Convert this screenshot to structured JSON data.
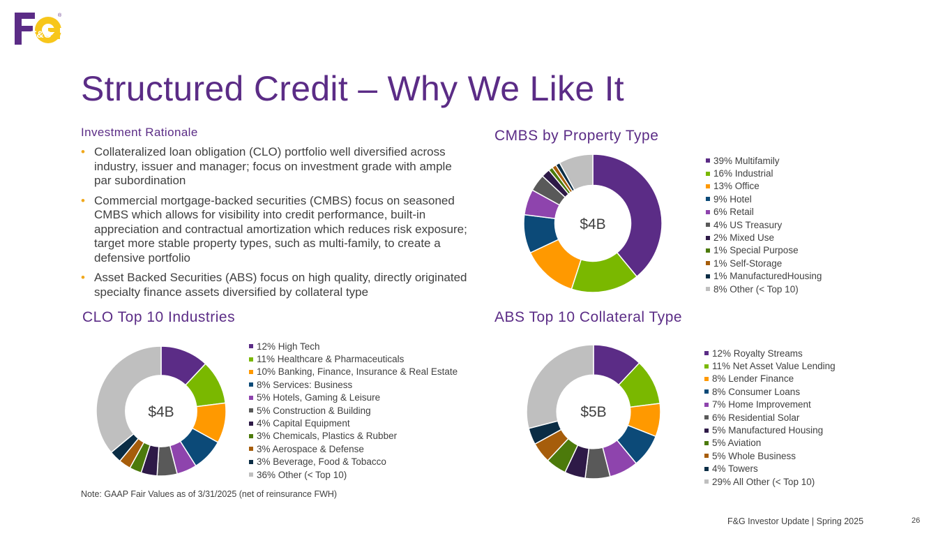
{
  "logo": {
    "text": "F&G",
    "registered": "®",
    "colors": {
      "purple": "#5b2c86",
      "gold": "#f7c61b"
    }
  },
  "title": "Structured Credit – Why We Like It",
  "rationale": {
    "heading": "Investment Rationale",
    "bullet_glyph": "•",
    "bullets": [
      "Collateralized loan obligation (CLO) portfolio well diversified across industry, issuer and manager; focus on investment grade with ample par subordination",
      "Commercial mortgage-backed securities (CMBS) focus on seasoned CMBS which allows for visibility into credit performance, built-in appreciation and contractual amortization which reduces risk exposure; target more stable property types, such as multi-family, to create a defensive portfolio",
      "Asset Backed Securities (ABS) focus on high quality, directly originated specialty finance assets diversified by collateral type"
    ]
  },
  "note": "Note: GAAP Fair Values as of 3/31/2025 (net of reinsurance FWH)",
  "footer": "F&G Investor Update | Spring 2025",
  "page_number": "26",
  "chart_data": [
    {
      "id": "cmbs",
      "type": "pie",
      "title": "CMBS by Property Type",
      "center_label": "$4B",
      "legend_placement": "right",
      "categories": [
        "Multifamily",
        "Industrial",
        "Office",
        "Hotel",
        "Retail",
        "US Treasury",
        "Mixed Use",
        "Special Purpose",
        "Self-Storage",
        "ManufacturedHousing",
        "Other (< Top 10)"
      ],
      "values": [
        39,
        16,
        13,
        9,
        6,
        4,
        2,
        1,
        1,
        1,
        8
      ],
      "legend_labels": [
        "39% Multifamily",
        "16% Industrial",
        "13% Office",
        "9% Hotel",
        "6% Retail",
        "4% US Treasury",
        "2% Mixed Use",
        "1% Special Purpose",
        "1% Self-Storage",
        "1% ManufacturedHousing",
        "8% Other (< Top 10)"
      ],
      "colors": [
        "#5b2c86",
        "#7ab800",
        "#ff9900",
        "#0c4a78",
        "#8e44ad",
        "#595959",
        "#2e1a47",
        "#4c7a0b",
        "#a65d0b",
        "#0b2d45",
        "#bfbfbf"
      ]
    },
    {
      "id": "clo",
      "type": "pie",
      "title": "CLO Top 10 Industries",
      "center_label": "$4B",
      "legend_placement": "right",
      "categories": [
        "High Tech",
        "Healthcare & Pharmaceuticals",
        "Banking, Finance, Insurance & Real Estate",
        "Services: Business",
        "Hotels, Gaming & Leisure",
        "Construction & Building",
        "Capital Equipment",
        "Chemicals, Plastics & Rubber",
        "Aerospace & Defense",
        "Beverage, Food & Tobacco",
        "Other (< Top 10)"
      ],
      "values": [
        12,
        11,
        10,
        8,
        5,
        5,
        4,
        3,
        3,
        3,
        36
      ],
      "legend_labels": [
        "12% High Tech",
        "11% Healthcare & Pharmaceuticals",
        "10% Banking, Finance, Insurance & Real Estate",
        "8% Services: Business",
        "5% Hotels, Gaming & Leisure",
        "5% Construction & Building",
        "4% Capital Equipment",
        "3% Chemicals, Plastics & Rubber",
        "3% Aerospace & Defense",
        "3% Beverage, Food & Tobacco",
        "36% Other (< Top 10)"
      ],
      "colors": [
        "#5b2c86",
        "#7ab800",
        "#ff9900",
        "#0c4a78",
        "#8e44ad",
        "#595959",
        "#2e1a47",
        "#4c7a0b",
        "#a65d0b",
        "#0b2d45",
        "#bfbfbf"
      ]
    },
    {
      "id": "abs",
      "type": "pie",
      "title": "ABS Top 10 Collateral Type",
      "center_label": "$5B",
      "legend_placement": "right",
      "categories": [
        "Royalty Streams",
        "Net Asset Value Lending",
        "Lender Finance",
        "Consumer Loans",
        "Home Improvement",
        "Residential Solar",
        "Manufactured Housing",
        "Aviation",
        "Whole Business",
        "Towers",
        "All Other (< Top 10)"
      ],
      "values": [
        12,
        11,
        8,
        8,
        7,
        6,
        5,
        5,
        5,
        4,
        29
      ],
      "legend_labels": [
        "12% Royalty Streams",
        "11% Net Asset Value Lending",
        "8% Lender Finance",
        "8% Consumer Loans",
        "7% Home Improvement",
        "6% Residential Solar",
        "5% Manufactured Housing",
        "5% Aviation",
        "5% Whole Business",
        "4% Towers",
        "29% All Other (< Top 10)"
      ],
      "colors": [
        "#5b2c86",
        "#7ab800",
        "#ff9900",
        "#0c4a78",
        "#8e44ad",
        "#595959",
        "#2e1a47",
        "#4c7a0b",
        "#a65d0b",
        "#0b2d45",
        "#bfbfbf"
      ]
    }
  ]
}
